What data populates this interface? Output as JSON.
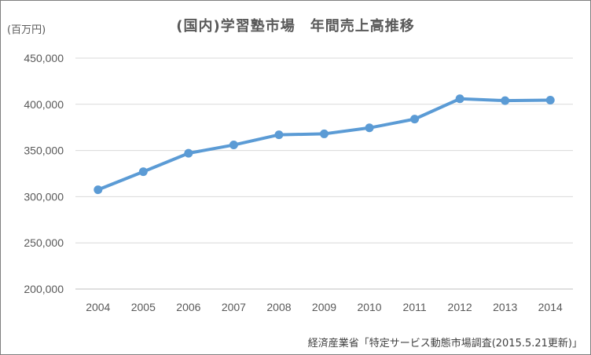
{
  "chart_data": {
    "type": "line",
    "title": "(国内)学習塾市場　年間売上高推移",
    "ylabel": "(百万円)",
    "source_note": "経済産業省「特定サービス動態市場調査(2015.5.21更新)」",
    "categories": [
      "2004",
      "2005",
      "2006",
      "2007",
      "2008",
      "2009",
      "2010",
      "2011",
      "2012",
      "2013",
      "2014"
    ],
    "series": [
      {
        "values": [
          307500,
          327000,
          347000,
          356000,
          367000,
          368000,
          374500,
          384000,
          406000,
          404000,
          404500
        ]
      }
    ],
    "ylim": [
      200000,
      450000
    ],
    "yticks": [
      {
        "value": 200000,
        "label": "200,000"
      },
      {
        "value": 250000,
        "label": "250,000"
      },
      {
        "value": 300000,
        "label": "300,000"
      },
      {
        "value": 350000,
        "label": "350,000"
      },
      {
        "value": 400000,
        "label": "400,000"
      },
      {
        "value": 450000,
        "label": "450,000"
      }
    ],
    "grid": true,
    "line_color": "#5b9bd5"
  }
}
